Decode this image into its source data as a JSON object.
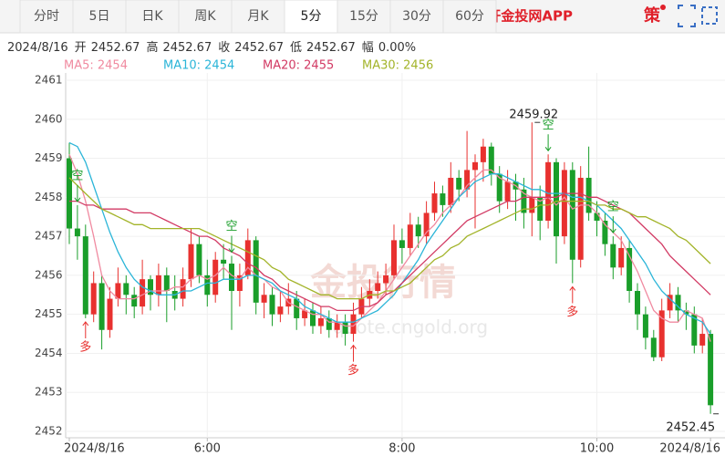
{
  "tabs": {
    "items": [
      "分时",
      "5日",
      "日K",
      "周K",
      "月K",
      "5分",
      "15分",
      "30分",
      "60分"
    ],
    "active": 5
  },
  "app_link": "打开金投网APP",
  "strategy": "策",
  "quote": {
    "date": "2024/8/16",
    "items": [
      {
        "label": "开",
        "value": "2452.67"
      },
      {
        "label": "高",
        "value": "2452.67"
      },
      {
        "label": "收",
        "value": "2452.67"
      },
      {
        "label": "低",
        "value": "2452.67"
      },
      {
        "label": "幅",
        "value": "0.00%"
      }
    ]
  },
  "chart_data": {
    "type": "candlestick",
    "categories": [
      "2024/8/16",
      null,
      null,
      null,
      null,
      null,
      null,
      null,
      null,
      null,
      null,
      null,
      null,
      null,
      null,
      null,
      null,
      "6:00",
      null,
      null,
      null,
      null,
      null,
      null,
      null,
      null,
      null,
      null,
      null,
      null,
      null,
      null,
      null,
      null,
      null,
      null,
      null,
      null,
      null,
      null,
      null,
      "8:00",
      null,
      null,
      null,
      null,
      null,
      null,
      null,
      null,
      null,
      null,
      null,
      null,
      null,
      null,
      null,
      null,
      null,
      null,
      null,
      null,
      null,
      null,
      null,
      "10:00",
      null,
      null,
      null,
      null,
      null,
      null,
      null,
      null,
      null,
      null,
      null,
      null,
      null,
      "2024/8/16"
    ],
    "ohlc": [
      [
        2459.0,
        2459.4,
        2456.8,
        2457.2
      ],
      [
        2457.2,
        2457.8,
        2456.4,
        2457.0
      ],
      [
        2457.0,
        2457.3,
        2454.9,
        2455.0
      ],
      [
        2455.0,
        2456.1,
        2454.8,
        2455.8
      ],
      [
        2455.8,
        2456.0,
        2454.1,
        2454.6
      ],
      [
        2454.6,
        2455.7,
        2454.4,
        2455.4
      ],
      [
        2455.4,
        2456.2,
        2455.2,
        2455.8
      ],
      [
        2455.8,
        2456.0,
        2455.0,
        2455.5
      ],
      [
        2455.5,
        2455.7,
        2454.9,
        2455.2
      ],
      [
        2455.2,
        2456.4,
        2455.0,
        2455.9
      ],
      [
        2455.9,
        2456.0,
        2455.1,
        2455.5
      ],
      [
        2455.5,
        2456.3,
        2455.2,
        2456.0
      ],
      [
        2456.0,
        2456.2,
        2454.8,
        2455.6
      ],
      [
        2455.6,
        2456.0,
        2455.1,
        2455.4
      ],
      [
        2455.4,
        2456.2,
        2455.2,
        2455.9
      ],
      [
        2455.9,
        2457.2,
        2455.7,
        2456.8
      ],
      [
        2456.8,
        2457.0,
        2455.8,
        2456.0
      ],
      [
        2456.0,
        2456.4,
        2455.2,
        2455.5
      ],
      [
        2455.5,
        2456.6,
        2455.3,
        2456.4
      ],
      [
        2456.4,
        2456.8,
        2455.9,
        2456.3
      ],
      [
        2456.3,
        2456.5,
        2454.6,
        2455.6
      ],
      [
        2455.6,
        2456.3,
        2455.2,
        2456.0
      ],
      [
        2456.0,
        2457.2,
        2455.9,
        2456.9
      ],
      [
        2456.9,
        2457.0,
        2455.0,
        2455.3
      ],
      [
        2455.3,
        2455.8,
        2454.9,
        2455.5
      ],
      [
        2455.5,
        2455.7,
        2454.7,
        2455.0
      ],
      [
        2455.0,
        2455.6,
        2454.8,
        2455.2
      ],
      [
        2455.2,
        2455.8,
        2455.0,
        2455.4
      ],
      [
        2455.4,
        2455.6,
        2454.6,
        2454.9
      ],
      [
        2454.9,
        2455.4,
        2454.7,
        2455.1
      ],
      [
        2455.1,
        2455.3,
        2454.5,
        2454.7
      ],
      [
        2454.7,
        2455.2,
        2454.5,
        2454.9
      ],
      [
        2454.9,
        2455.1,
        2454.4,
        2454.6
      ],
      [
        2454.6,
        2455.0,
        2454.4,
        2454.8
      ],
      [
        2454.8,
        2455.0,
        2454.2,
        2454.5
      ],
      [
        2454.5,
        2455.3,
        2454.3,
        2455.0
      ],
      [
        2455.0,
        2455.7,
        2454.9,
        2455.4
      ],
      [
        2455.4,
        2455.9,
        2455.2,
        2455.6
      ],
      [
        2455.6,
        2456.1,
        2455.4,
        2455.8
      ],
      [
        2455.8,
        2456.3,
        2455.5,
        2456.0
      ],
      [
        2456.0,
        2457.3,
        2455.9,
        2456.9
      ],
      [
        2456.9,
        2457.2,
        2456.3,
        2456.7
      ],
      [
        2456.7,
        2457.6,
        2456.5,
        2457.3
      ],
      [
        2457.3,
        2457.5,
        2456.7,
        2457.0
      ],
      [
        2457.0,
        2457.9,
        2456.8,
        2457.6
      ],
      [
        2457.6,
        2458.4,
        2457.4,
        2458.1
      ],
      [
        2458.1,
        2458.3,
        2457.5,
        2457.8
      ],
      [
        2457.8,
        2458.9,
        2457.6,
        2458.5
      ],
      [
        2458.5,
        2458.7,
        2457.9,
        2458.2
      ],
      [
        2458.2,
        2459.7,
        2458.0,
        2458.7
      ],
      [
        2458.7,
        2459.1,
        2457.2,
        2458.9
      ],
      [
        2458.9,
        2459.5,
        2458.4,
        2459.3
      ],
      [
        2459.3,
        2459.4,
        2458.3,
        2458.6
      ],
      [
        2458.6,
        2458.8,
        2457.6,
        2457.9
      ],
      [
        2457.9,
        2458.7,
        2457.7,
        2458.4
      ],
      [
        2458.4,
        2458.6,
        2457.4,
        2458.2
      ],
      [
        2458.2,
        2458.5,
        2457.2,
        2457.6
      ],
      [
        2457.6,
        2459.92,
        2457.0,
        2458.0
      ],
      [
        2458.0,
        2458.3,
        2456.9,
        2457.4
      ],
      [
        2457.4,
        2459.1,
        2457.2,
        2458.9
      ],
      [
        2458.9,
        2459.0,
        2456.3,
        2457.0
      ],
      [
        2457.0,
        2458.9,
        2456.8,
        2458.7
      ],
      [
        2458.7,
        2458.9,
        2455.8,
        2456.4
      ],
      [
        2456.4,
        2458.8,
        2456.2,
        2458.5
      ],
      [
        2458.5,
        2459.3,
        2457.4,
        2457.6
      ],
      [
        2457.6,
        2457.9,
        2457.0,
        2457.4
      ],
      [
        2457.4,
        2457.6,
        2456.5,
        2456.8
      ],
      [
        2456.8,
        2457.0,
        2455.9,
        2456.2
      ],
      [
        2456.2,
        2457.0,
        2456.0,
        2456.7
      ],
      [
        2456.7,
        2456.9,
        2455.3,
        2455.6
      ],
      [
        2455.6,
        2455.8,
        2454.6,
        2455.0
      ],
      [
        2455.0,
        2455.2,
        2454.1,
        2454.4
      ],
      [
        2454.4,
        2454.6,
        2453.8,
        2453.9
      ],
      [
        2453.9,
        2455.4,
        2453.8,
        2455.1
      ],
      [
        2455.1,
        2455.8,
        2454.9,
        2455.5
      ],
      [
        2455.5,
        2455.7,
        2454.8,
        2455.1
      ],
      [
        2455.1,
        2455.3,
        2454.6,
        2455.0
      ],
      [
        2455.0,
        2455.2,
        2454.0,
        2454.2
      ],
      [
        2454.2,
        2454.9,
        2454.0,
        2454.5
      ],
      [
        2454.5,
        2454.6,
        2452.45,
        2452.67
      ]
    ],
    "up_color": "#e8312f",
    "down_color": "#1a9e2a",
    "series": [
      {
        "name": "MA5: 2454",
        "color": "#f08aa0",
        "values": [
          2459.1,
          2458.6,
          2457.9,
          2457.0,
          2456.0,
          2455.6,
          2455.4,
          2455.4,
          2455.4,
          2455.5,
          2455.6,
          2455.6,
          2455.6,
          2455.7,
          2455.7,
          2455.9,
          2456.0,
          2455.9,
          2456.0,
          2456.2,
          2456.0,
          2455.9,
          2456.2,
          2456.0,
          2455.9,
          2455.7,
          2455.6,
          2455.3,
          2455.2,
          2455.1,
          2455.0,
          2455.0,
          2454.8,
          2454.8,
          2454.7,
          2454.7,
          2454.9,
          2455.1,
          2455.3,
          2455.6,
          2455.9,
          2456.2,
          2456.5,
          2456.8,
          2457.1,
          2457.3,
          2457.6,
          2457.8,
          2458.0,
          2458.3,
          2458.5,
          2458.7,
          2458.7,
          2458.5,
          2458.4,
          2458.3,
          2458.1,
          2458.0,
          2457.9,
          2458.0,
          2457.8,
          2458.0,
          2457.7,
          2457.8,
          2457.8,
          2457.6,
          2457.3,
          2457.1,
          2456.9,
          2456.5,
          2456.1,
          2455.6,
          2455.1,
          2454.9,
          2454.8,
          2454.8,
          2455.1,
          2455.0,
          2454.9,
          2454.3
        ]
      },
      {
        "name": "MA10: 2454",
        "color": "#2bb5d8",
        "values": [
          2459.4,
          2459.3,
          2458.9,
          2458.3,
          2457.7,
          2457.1,
          2456.6,
          2456.2,
          2455.9,
          2455.7,
          2455.6,
          2455.5,
          2455.5,
          2455.5,
          2455.6,
          2455.6,
          2455.7,
          2455.8,
          2455.8,
          2455.9,
          2455.9,
          2455.9,
          2456.0,
          2456.0,
          2455.9,
          2455.8,
          2455.6,
          2455.5,
          2455.4,
          2455.2,
          2455.1,
          2455.0,
          2454.9,
          2454.8,
          2454.8,
          2454.8,
          2454.9,
          2455.0,
          2455.1,
          2455.3,
          2455.5,
          2455.8,
          2456.1,
          2456.4,
          2456.8,
          2457.1,
          2457.4,
          2457.7,
          2458.0,
          2458.2,
          2458.4,
          2458.5,
          2458.6,
          2458.6,
          2458.5,
          2458.4,
          2458.3,
          2458.2,
          2458.2,
          2458.1,
          2458.1,
          2458.1,
          2458.0,
          2458.0,
          2457.9,
          2457.8,
          2457.6,
          2457.4,
          2457.2,
          2456.9,
          2456.6,
          2456.3,
          2455.9,
          2455.6,
          2455.4,
          2455.2,
          2455.0,
          2454.9,
          2454.8,
          2454.5
        ]
      },
      {
        "name": "MA20: 2455",
        "color": "#d23a64",
        "values": [
          2457.9,
          2457.9,
          2457.8,
          2457.8,
          2457.7,
          2457.7,
          2457.7,
          2457.7,
          2457.6,
          2457.6,
          2457.6,
          2457.5,
          2457.4,
          2457.3,
          2457.2,
          2457.1,
          2457.0,
          2457.0,
          2456.9,
          2456.7,
          2456.6,
          2456.5,
          2456.3,
          2456.2,
          2456.0,
          2455.9,
          2455.7,
          2455.6,
          2455.5,
          2455.4,
          2455.3,
          2455.2,
          2455.2,
          2455.1,
          2455.1,
          2455.1,
          2455.2,
          2455.2,
          2455.3,
          2455.5,
          2455.6,
          2455.8,
          2456.0,
          2456.2,
          2456.4,
          2456.6,
          2456.8,
          2457.0,
          2457.2,
          2457.4,
          2457.5,
          2457.6,
          2457.7,
          2457.8,
          2457.9,
          2457.9,
          2458.0,
          2458.0,
          2458.0,
          2458.0,
          2458.0,
          2458.1,
          2458.1,
          2458.1,
          2458.0,
          2458.0,
          2457.9,
          2457.8,
          2457.7,
          2457.6,
          2457.4,
          2457.2,
          2457.0,
          2456.8,
          2456.5,
          2456.3,
          2456.1,
          2455.9,
          2455.7,
          2455.5
        ]
      },
      {
        "name": "MA30: 2456",
        "color": "#a3b42a",
        "values": [
          2458.5,
          2458.3,
          2458.1,
          2457.9,
          2457.7,
          2457.6,
          2457.5,
          2457.4,
          2457.3,
          2457.3,
          2457.2,
          2457.2,
          2457.2,
          2457.2,
          2457.2,
          2457.2,
          2457.2,
          2457.1,
          2457.0,
          2456.9,
          2456.8,
          2456.7,
          2456.6,
          2456.5,
          2456.4,
          2456.2,
          2456.1,
          2455.9,
          2455.8,
          2455.7,
          2455.6,
          2455.5,
          2455.5,
          2455.4,
          2455.4,
          2455.4,
          2455.4,
          2455.5,
          2455.5,
          2455.6,
          2455.6,
          2455.7,
          2455.8,
          2456.0,
          2456.2,
          2456.4,
          2456.5,
          2456.7,
          2456.8,
          2457.0,
          2457.1,
          2457.2,
          2457.3,
          2457.4,
          2457.5,
          2457.6,
          2457.7,
          2457.7,
          2457.8,
          2457.8,
          2457.9,
          2457.9,
          2457.9,
          2457.9,
          2457.9,
          2457.8,
          2457.8,
          2457.7,
          2457.7,
          2457.6,
          2457.5,
          2457.5,
          2457.4,
          2457.3,
          2457.2,
          2457.0,
          2456.9,
          2456.7,
          2456.5,
          2456.3
        ]
      }
    ],
    "ylim": [
      2452,
      2461
    ],
    "yticks": [
      2452,
      2453,
      2454,
      2455,
      2456,
      2457,
      2458,
      2459,
      2460,
      2461
    ],
    "grid": true,
    "annotations": [
      {
        "text": "2459.92",
        "index": 57,
        "value": 2459.92,
        "side": "high"
      },
      {
        "text": "2452.45",
        "index": 79,
        "value": 2452.45,
        "side": "low"
      }
    ],
    "signals": [
      {
        "text": "空",
        "index": 1
      },
      {
        "text": "多",
        "index": 2
      },
      {
        "text": "空",
        "index": 20
      },
      {
        "text": "多",
        "index": 35
      },
      {
        "text": "空",
        "index": 59
      },
      {
        "text": "多",
        "index": 62
      },
      {
        "text": "空",
        "index": 67
      }
    ],
    "watermark": {
      "title": "金投行情",
      "url": "quote.cngold.org"
    }
  }
}
